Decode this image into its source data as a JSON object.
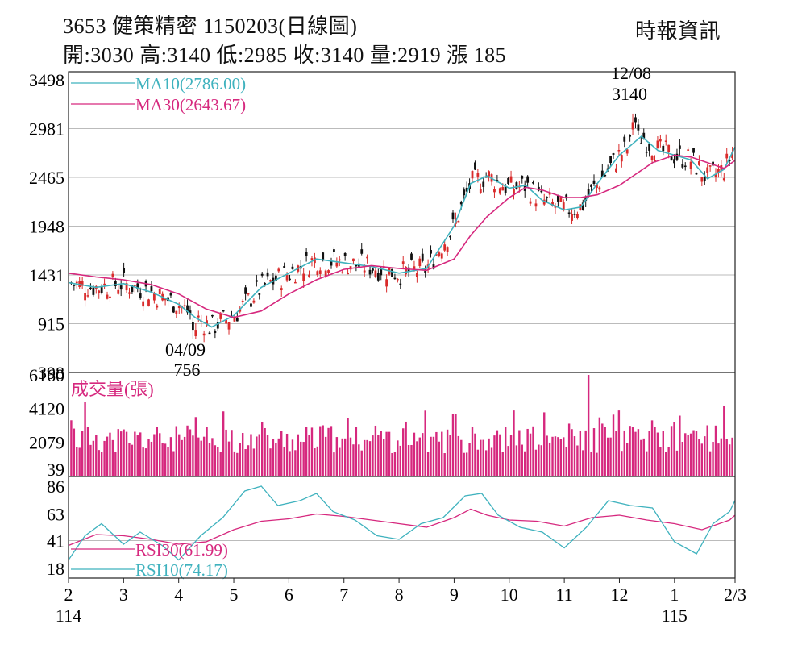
{
  "header": {
    "title": "3653  健策精密 1150203(日線圖)",
    "ohlc": "開:3030 高:3140 低:2985 收:3140 量:2919 漲 185",
    "source": "時報資訊"
  },
  "colors": {
    "ma10": "#3fb2be",
    "ma30": "#d6287e",
    "volume": "#d6287e",
    "candle_up": "#d92b2b",
    "candle_down": "#111111",
    "grid": "#bbbbbb"
  },
  "chart_data": [
    {
      "type": "candlestick",
      "title": "",
      "ylim": [
        398,
        3498
      ],
      "yticks": [
        "3498",
        "2981",
        "2465",
        "1948",
        "1431",
        "915",
        "398"
      ],
      "legend": [
        {
          "label": "MA10(2786.00)",
          "color": "#3fb2be"
        },
        {
          "label": "MA30(2643.67)",
          "color": "#d6287e"
        }
      ],
      "annotations": [
        {
          "date": "12/08",
          "value": "3140",
          "kind": "high"
        },
        {
          "date": "04/09",
          "value": "756",
          "kind": "low"
        }
      ],
      "series": [
        {
          "name": "MA10",
          "months": [
            2,
            2.5,
            3,
            3.5,
            4,
            4.3,
            4.6,
            5,
            5.5,
            6,
            6.5,
            7,
            7.5,
            8,
            8.5,
            9,
            9.3,
            9.6,
            10,
            10.3,
            10.6,
            11,
            11.3,
            11.6,
            12,
            12.4,
            12.7,
            13,
            13.3,
            13.6,
            13.9,
            14.1
          ],
          "values": [
            1350,
            1300,
            1340,
            1250,
            1120,
            980,
            880,
            1000,
            1300,
            1450,
            1600,
            1560,
            1520,
            1450,
            1500,
            1950,
            2400,
            2480,
            2350,
            2380,
            2220,
            2120,
            2150,
            2400,
            2700,
            2900,
            2750,
            2700,
            2650,
            2450,
            2550,
            2786
          ]
        },
        {
          "name": "MA30",
          "months": [
            2,
            2.5,
            3,
            3.5,
            4,
            4.5,
            5,
            5.5,
            6,
            6.5,
            7,
            7.5,
            8,
            8.5,
            9,
            9.3,
            9.6,
            10,
            10.3,
            10.6,
            11,
            11.3,
            11.6,
            12,
            12.3,
            12.6,
            13,
            13.3,
            13.6,
            13.9,
            14.1
          ],
          "values": [
            1450,
            1410,
            1380,
            1330,
            1230,
            1070,
            980,
            1050,
            1230,
            1380,
            1490,
            1530,
            1500,
            1480,
            1600,
            1850,
            2050,
            2250,
            2360,
            2330,
            2250,
            2250,
            2280,
            2380,
            2500,
            2620,
            2700,
            2680,
            2620,
            2560,
            2643.67
          ]
        }
      ]
    },
    {
      "type": "bar",
      "title": "成交量(張)",
      "ylim": [
        39,
        6160
      ],
      "yticks": [
        "6160",
        "4120",
        "2079",
        "39"
      ],
      "note": "daily volume bars, peak ~6160 near mid-November",
      "series": [
        {
          "name": "volume",
          "months": [
            2.1,
            2.3,
            2.5,
            2.8,
            3.1,
            3.4,
            3.8,
            4.3,
            4.7,
            5.1,
            5.5,
            5.8,
            6.2,
            6.6,
            7,
            7.4,
            7.8,
            8.2,
            8.6,
            9,
            9.4,
            9.8,
            10.1,
            10.4,
            10.8,
            11.1,
            11.45,
            11.7,
            12,
            12.3,
            12.6,
            13,
            13.3,
            13.6,
            13.9,
            14.1
          ],
          "values": [
            2900,
            4500,
            2500,
            2200,
            2000,
            1700,
            1800,
            3600,
            1800,
            2000,
            3300,
            2300,
            2100,
            3100,
            2300,
            2200,
            2700,
            1900,
            2400,
            3800,
            2600,
            2800,
            4000,
            2600,
            2400,
            3200,
            6160,
            3200,
            4000,
            2700,
            3400,
            3300,
            2600,
            3100,
            4300,
            2919
          ]
        }
      ]
    },
    {
      "type": "line",
      "title": "",
      "ylim": [
        18,
        86
      ],
      "yticks": [
        "86",
        "63",
        "41",
        "18"
      ],
      "legend": [
        {
          "label": "RSI30(61.99)",
          "color": "#d6287e"
        },
        {
          "label": "RSI10(74.17)",
          "color": "#3fb2be"
        }
      ],
      "series": [
        {
          "name": "RSI30",
          "months": [
            2,
            2.5,
            3,
            3.5,
            4,
            4.5,
            5,
            5.5,
            6,
            6.5,
            7,
            7.5,
            8,
            8.5,
            9,
            9.3,
            9.6,
            10,
            10.5,
            11,
            11.5,
            12,
            12.5,
            13,
            13.5,
            14,
            14.1
          ],
          "values": [
            37,
            46,
            45,
            42,
            38,
            40,
            50,
            57,
            59,
            63,
            61,
            58,
            55,
            52,
            60,
            67,
            62,
            58,
            57,
            53,
            60,
            62,
            58,
            55,
            50,
            58,
            61.99
          ]
        },
        {
          "name": "RSI10",
          "months": [
            2,
            2.3,
            2.6,
            3,
            3.3,
            3.7,
            4,
            4.4,
            4.8,
            5.2,
            5.5,
            5.8,
            6.2,
            6.5,
            6.8,
            7.2,
            7.6,
            8,
            8.4,
            8.8,
            9.2,
            9.5,
            9.8,
            10.2,
            10.6,
            11,
            11.4,
            11.8,
            12.2,
            12.6,
            13,
            13.4,
            13.7,
            14,
            14.1
          ],
          "values": [
            25,
            45,
            55,
            38,
            48,
            37,
            25,
            45,
            60,
            82,
            86,
            70,
            74,
            80,
            65,
            58,
            45,
            42,
            55,
            60,
            78,
            80,
            62,
            52,
            48,
            35,
            52,
            74,
            70,
            68,
            40,
            30,
            55,
            65,
            74.17
          ]
        }
      ]
    }
  ],
  "x_axis": {
    "ticks": [
      {
        "label": "2",
        "month": 2
      },
      {
        "label": "3",
        "month": 3
      },
      {
        "label": "4",
        "month": 4
      },
      {
        "label": "5",
        "month": 5
      },
      {
        "label": "6",
        "month": 6
      },
      {
        "label": "7",
        "month": 7
      },
      {
        "label": "8",
        "month": 8
      },
      {
        "label": "9",
        "month": 9
      },
      {
        "label": "10",
        "month": 10
      },
      {
        "label": "11",
        "month": 11
      },
      {
        "label": "12",
        "month": 12
      },
      {
        "label": "1",
        "month": 13
      },
      {
        "label": "2/3",
        "month": 14.1
      }
    ],
    "year_labels": [
      {
        "label": "114",
        "month": 2
      },
      {
        "label": "115",
        "month": 13
      }
    ]
  }
}
